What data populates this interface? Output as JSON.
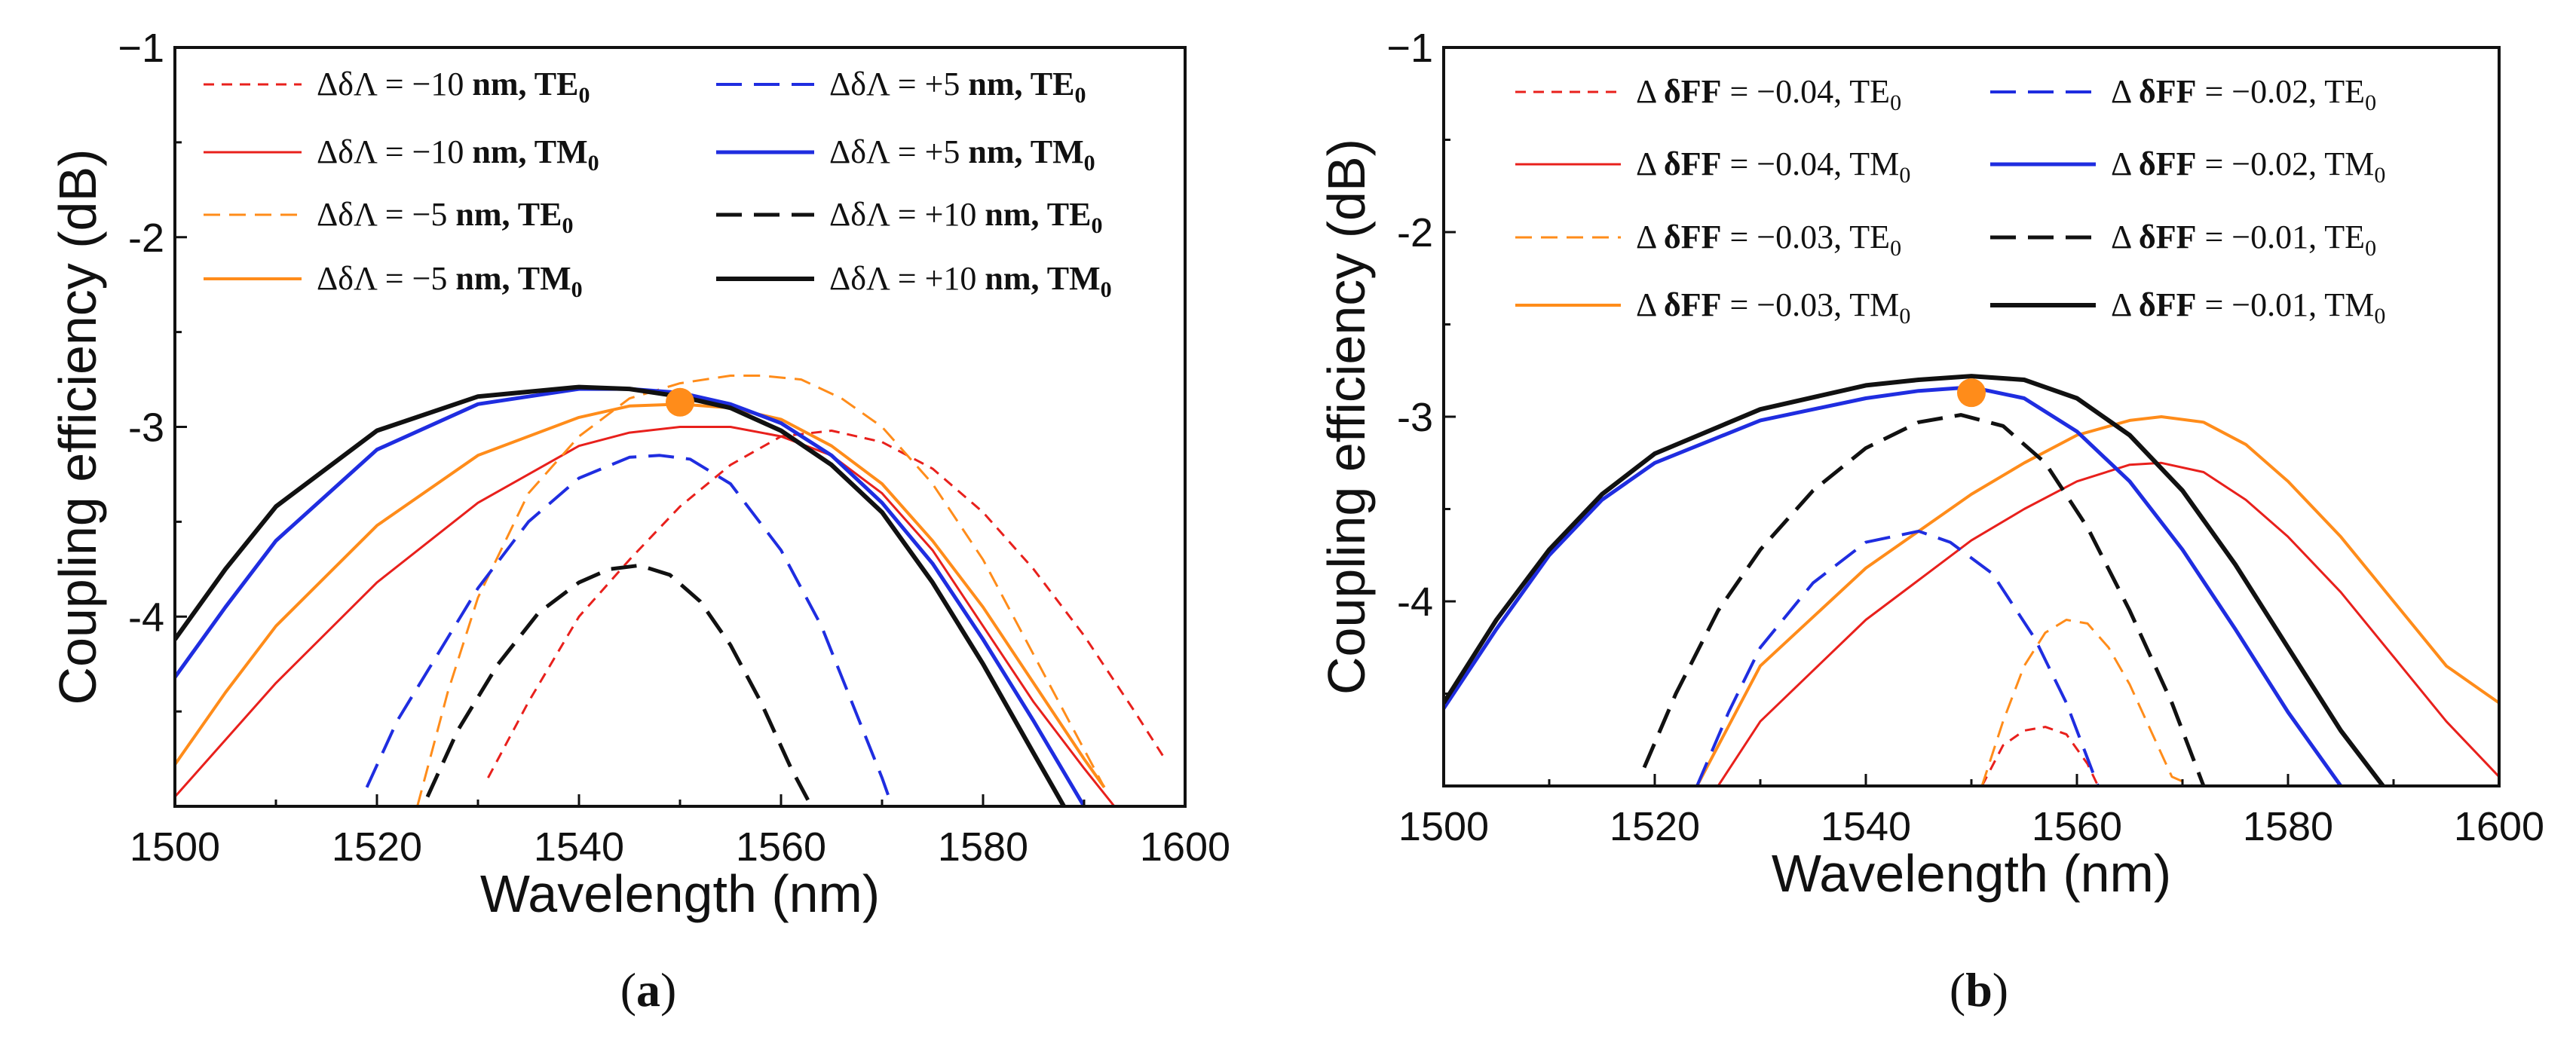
{
  "chart_data": [
    {
      "type": "line",
      "panel_label_open": "(",
      "panel_label_letter": "a",
      "panel_label_close": ")",
      "xlabel": "Wavelength (nm)",
      "ylabel": "Coupling efficiency (dB)",
      "xlim": [
        1500,
        1600
      ],
      "ylim": [
        -5,
        -1
      ],
      "xticks": [
        1500,
        1520,
        1540,
        1560,
        1580,
        1600
      ],
      "xtick_labels": [
        "1500",
        "1520",
        "1540",
        "1560",
        "1580",
        "1600"
      ],
      "yticks": [
        -1,
        -2,
        -3,
        -4
      ],
      "ytick_labels": [
        "−1",
        "-2",
        "-3",
        "-4"
      ],
      "marker": {
        "x": 1550,
        "y": -2.87,
        "color": "#ff8c1a"
      },
      "series": [
        {
          "legend_prefix": "ΔδΛ = −10 ",
          "legend_bold": "nm, TE",
          "legend_sub": "0",
          "color": "#e8201c",
          "dash": "short",
          "width": 3,
          "x": [
            1531,
            1535,
            1540,
            1545,
            1550,
            1555,
            1560,
            1565,
            1570,
            1575,
            1580,
            1585,
            1590,
            1595,
            1598
          ],
          "y": [
            -4.85,
            -4.45,
            -4.0,
            -3.7,
            -3.42,
            -3.2,
            -3.05,
            -3.02,
            -3.08,
            -3.22,
            -3.45,
            -3.75,
            -4.1,
            -4.5,
            -4.75
          ]
        },
        {
          "legend_prefix": "ΔδΛ = −10 ",
          "legend_bold": "nm, TM",
          "legend_sub": "0",
          "color": "#e8201c",
          "dash": "solid",
          "width": 3,
          "x": [
            1500,
            1505,
            1510,
            1520,
            1530,
            1540,
            1545,
            1550,
            1555,
            1560,
            1565,
            1570,
            1575,
            1580,
            1585,
            1590,
            1593
          ],
          "y": [
            -4.95,
            -4.65,
            -4.35,
            -3.82,
            -3.4,
            -3.1,
            -3.03,
            -3.0,
            -3.0,
            -3.05,
            -3.15,
            -3.35,
            -3.65,
            -4.05,
            -4.45,
            -4.8,
            -5.0
          ]
        },
        {
          "legend_prefix": "ΔδΛ = −5 ",
          "legend_bold": "nm, TE",
          "legend_sub": "0",
          "color": "#ff8c1a",
          "dash": "medium",
          "width": 3,
          "x": [
            1524,
            1527,
            1530,
            1535,
            1540,
            1545,
            1550,
            1555,
            1558,
            1562,
            1566,
            1570,
            1575,
            1580,
            1585,
            1589,
            1592
          ],
          "y": [
            -5.0,
            -4.4,
            -3.9,
            -3.35,
            -3.05,
            -2.85,
            -2.77,
            -2.73,
            -2.73,
            -2.75,
            -2.85,
            -3.0,
            -3.3,
            -3.7,
            -4.2,
            -4.6,
            -4.9
          ]
        },
        {
          "legend_prefix": "ΔδΛ = −5 ",
          "legend_bold": "nm, TM",
          "legend_sub": "0",
          "color": "#ff8c1a",
          "dash": "solid",
          "width": 4,
          "x": [
            1500,
            1505,
            1510,
            1520,
            1530,
            1540,
            1545,
            1550,
            1555,
            1560,
            1565,
            1570,
            1575,
            1580,
            1585,
            1590,
            1592
          ],
          "y": [
            -4.78,
            -4.4,
            -4.05,
            -3.52,
            -3.15,
            -2.95,
            -2.89,
            -2.88,
            -2.9,
            -2.96,
            -3.1,
            -3.3,
            -3.6,
            -3.95,
            -4.35,
            -4.75,
            -4.9
          ]
        },
        {
          "legend_prefix": "ΔδΛ = +5 ",
          "legend_bold": "nm, TE",
          "legend_sub": "0",
          "color": "#1f2de0",
          "dash": "long",
          "width": 4,
          "x": [
            1519,
            1522,
            1526,
            1530,
            1535,
            1540,
            1545,
            1548,
            1551,
            1555,
            1560,
            1564,
            1567,
            1570,
            1571
          ],
          "y": [
            -4.9,
            -4.55,
            -4.2,
            -3.85,
            -3.5,
            -3.27,
            -3.16,
            -3.15,
            -3.17,
            -3.3,
            -3.65,
            -4.05,
            -4.45,
            -4.85,
            -5.0
          ]
        },
        {
          "legend_prefix": "ΔδΛ = +5 ",
          "legend_bold": "nm, TM",
          "legend_sub": "0",
          "color": "#1f2de0",
          "dash": "solid",
          "width": 5,
          "x": [
            1500,
            1505,
            1510,
            1520,
            1530,
            1540,
            1545,
            1550,
            1555,
            1560,
            1565,
            1570,
            1575,
            1580,
            1585,
            1590
          ],
          "y": [
            -4.32,
            -3.95,
            -3.6,
            -3.12,
            -2.88,
            -2.8,
            -2.8,
            -2.82,
            -2.88,
            -2.98,
            -3.15,
            -3.4,
            -3.72,
            -4.12,
            -4.55,
            -5.0
          ]
        },
        {
          "legend_prefix": "ΔδΛ = +10 ",
          "legend_bold": "nm, TE",
          "legend_sub": "0",
          "color": "#111111",
          "dash": "long",
          "width": 5,
          "x": [
            1525,
            1528,
            1532,
            1536,
            1540,
            1543,
            1546,
            1549,
            1552,
            1555,
            1558,
            1561,
            1563
          ],
          "y": [
            -4.95,
            -4.6,
            -4.25,
            -3.98,
            -3.82,
            -3.75,
            -3.73,
            -3.78,
            -3.92,
            -4.15,
            -4.45,
            -4.8,
            -5.0
          ]
        },
        {
          "legend_prefix": "ΔδΛ = +10 ",
          "legend_bold": "nm, TM",
          "legend_sub": "0",
          "color": "#111111",
          "dash": "solid",
          "width": 6,
          "x": [
            1500,
            1505,
            1510,
            1520,
            1530,
            1540,
            1545,
            1550,
            1555,
            1560,
            1565,
            1570,
            1575,
            1580,
            1585,
            1588
          ],
          "y": [
            -4.12,
            -3.75,
            -3.42,
            -3.02,
            -2.84,
            -2.79,
            -2.8,
            -2.84,
            -2.9,
            -3.02,
            -3.2,
            -3.45,
            -3.82,
            -4.25,
            -4.72,
            -5.0
          ]
        }
      ]
    },
    {
      "type": "line",
      "panel_label_open": "(",
      "panel_label_letter": "b",
      "panel_label_close": ")",
      "xlabel": "Wavelength (nm)",
      "ylabel": "Coupling efficiency (dB)",
      "xlim": [
        1500,
        1600
      ],
      "ylim": [
        -5,
        -1
      ],
      "xticks": [
        1500,
        1520,
        1540,
        1560,
        1580,
        1600
      ],
      "xtick_labels": [
        "1500",
        "1520",
        "1540",
        "1560",
        "1580",
        "1600"
      ],
      "yticks": [
        -1,
        -2,
        -3,
        -4
      ],
      "ytick_labels": [
        "−1",
        "-2",
        "-3",
        "-4"
      ],
      "marker": {
        "x": 1550,
        "y": -2.87,
        "color": "#ff8c1a"
      },
      "series": [
        {
          "legend_prefix": "Δ ",
          "legend_bold": "δFF",
          "legend_mid": " = −0.04, TE",
          "legend_sub": "0",
          "color": "#e8201c",
          "dash": "short",
          "width": 3,
          "x": [
            1551,
            1553,
            1555,
            1557,
            1559,
            1561,
            1562
          ],
          "y": [
            -5.0,
            -4.78,
            -4.7,
            -4.68,
            -4.72,
            -4.88,
            -5.0
          ]
        },
        {
          "legend_prefix": "Δ ",
          "legend_bold": "δFF",
          "legend_mid": " = −0.04, TM",
          "legend_sub": "0",
          "color": "#e8201c",
          "dash": "solid",
          "width": 3,
          "x": [
            1526,
            1530,
            1540,
            1550,
            1555,
            1560,
            1565,
            1568,
            1572,
            1576,
            1580,
            1585,
            1590,
            1595,
            1600
          ],
          "y": [
            -5.0,
            -4.65,
            -4.1,
            -3.67,
            -3.5,
            -3.35,
            -3.26,
            -3.25,
            -3.3,
            -3.45,
            -3.65,
            -3.95,
            -4.3,
            -4.65,
            -4.95
          ]
        },
        {
          "legend_prefix": "Δ ",
          "legend_bold": "δFF",
          "legend_mid": " = −0.03, TE",
          "legend_sub": "0",
          "color": "#ff8c1a",
          "dash": "medium",
          "width": 3,
          "x": [
            1551,
            1553,
            1555,
            1557,
            1559,
            1561,
            1563,
            1565,
            1567,
            1569,
            1571
          ],
          "y": [
            -5.0,
            -4.65,
            -4.35,
            -4.17,
            -4.1,
            -4.12,
            -4.25,
            -4.45,
            -4.7,
            -4.95,
            -5.0
          ]
        },
        {
          "legend_prefix": "Δ ",
          "legend_bold": "δFF",
          "legend_mid": " = −0.03, TM",
          "legend_sub": "0",
          "color": "#ff8c1a",
          "dash": "solid",
          "width": 4,
          "x": [
            1524,
            1530,
            1540,
            1550,
            1555,
            1560,
            1565,
            1568,
            1572,
            1576,
            1580,
            1585,
            1590,
            1595,
            1600
          ],
          "y": [
            -5.0,
            -4.35,
            -3.82,
            -3.42,
            -3.25,
            -3.1,
            -3.02,
            -3.0,
            -3.03,
            -3.15,
            -3.35,
            -3.65,
            -4.0,
            -4.35,
            -4.55
          ]
        },
        {
          "legend_prefix": "Δ ",
          "legend_bold": "δFF",
          "legend_mid": " = −0.02, TE",
          "legend_sub": "0",
          "color": "#1f2de0",
          "dash": "long",
          "width": 4,
          "x": [
            1524,
            1527,
            1530,
            1535,
            1540,
            1545,
            1548,
            1552,
            1556,
            1559,
            1562
          ],
          "y": [
            -5.0,
            -4.6,
            -4.25,
            -3.9,
            -3.68,
            -3.62,
            -3.68,
            -3.85,
            -4.2,
            -4.55,
            -5.0
          ]
        },
        {
          "legend_prefix": "Δ ",
          "legend_bold": "δFF",
          "legend_mid": " = −0.02, TM",
          "legend_sub": "0",
          "color": "#1f2de0",
          "dash": "solid",
          "width": 5,
          "x": [
            1500,
            1505,
            1510,
            1515,
            1520,
            1530,
            1540,
            1545,
            1550,
            1555,
            1560,
            1565,
            1570,
            1575,
            1580,
            1585
          ],
          "y": [
            -4.58,
            -4.15,
            -3.75,
            -3.45,
            -3.25,
            -3.02,
            -2.9,
            -2.86,
            -2.84,
            -2.9,
            -3.08,
            -3.35,
            -3.72,
            -4.15,
            -4.6,
            -5.0
          ]
        },
        {
          "legend_prefix": "Δ ",
          "legend_bold": "δFF",
          "legend_mid": " = −0.01, TE",
          "legend_sub": "0",
          "color": "#111111",
          "dash": "long",
          "width": 5,
          "x": [
            1519,
            1522,
            1526,
            1530,
            1535,
            1540,
            1545,
            1549,
            1553,
            1557,
            1561,
            1565,
            1569,
            1572
          ],
          "y": [
            -4.9,
            -4.5,
            -4.05,
            -3.72,
            -3.4,
            -3.17,
            -3.03,
            -2.99,
            -3.05,
            -3.25,
            -3.6,
            -4.05,
            -4.55,
            -5.0
          ]
        },
        {
          "legend_prefix": "Δ ",
          "legend_bold": "δFF",
          "legend_mid": " = −0.01, TM",
          "legend_sub": "0",
          "color": "#111111",
          "dash": "solid",
          "width": 6,
          "x": [
            1500,
            1505,
            1510,
            1515,
            1520,
            1530,
            1540,
            1545,
            1550,
            1555,
            1560,
            1565,
            1570,
            1575,
            1580,
            1585,
            1589
          ],
          "y": [
            -4.55,
            -4.1,
            -3.72,
            -3.42,
            -3.2,
            -2.96,
            -2.83,
            -2.8,
            -2.78,
            -2.8,
            -2.9,
            -3.1,
            -3.4,
            -3.8,
            -4.25,
            -4.7,
            -5.0
          ]
        }
      ]
    }
  ]
}
